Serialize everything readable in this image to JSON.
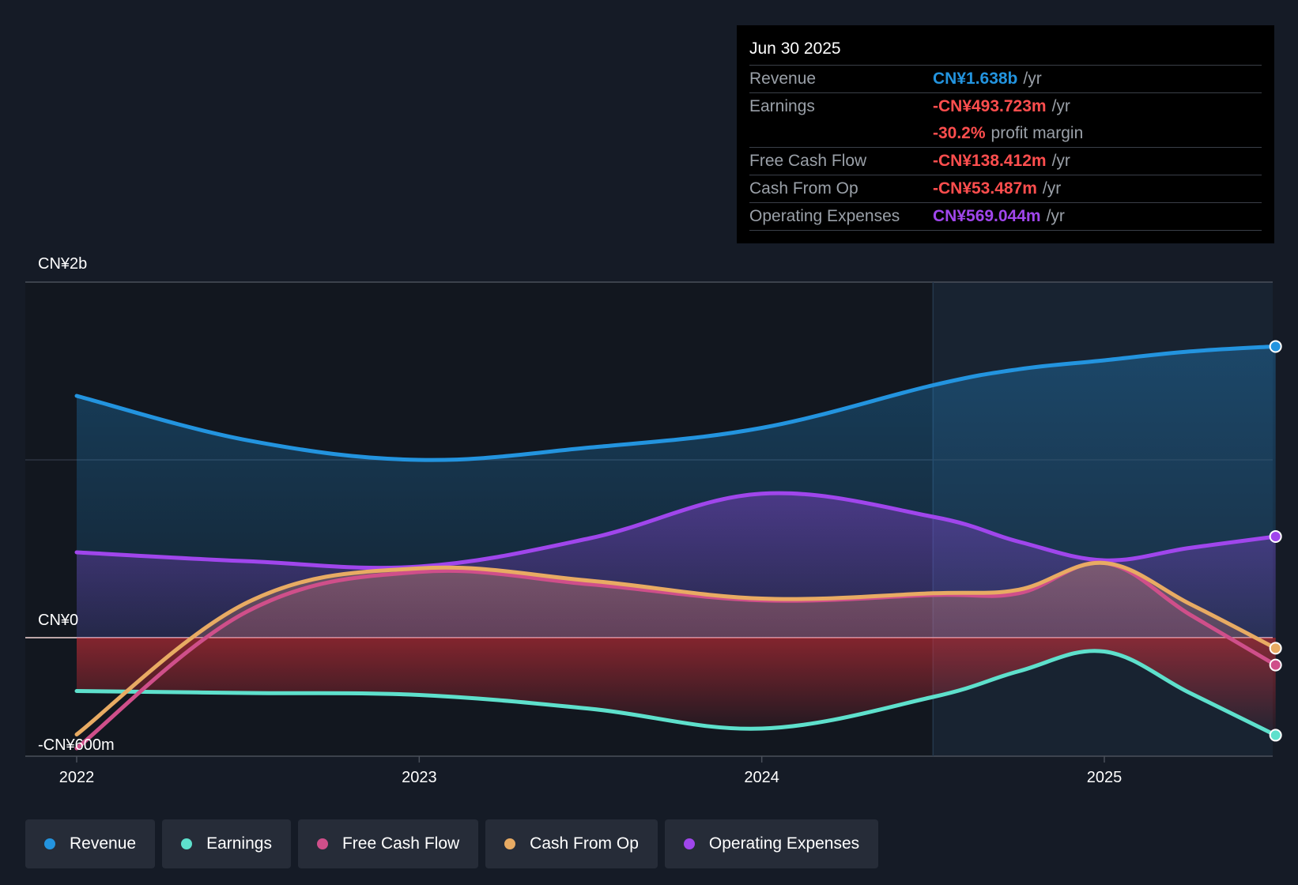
{
  "colors": {
    "background": "#151b26",
    "revenue": "#2394df",
    "earnings": "#5ee0cc",
    "free_cash_flow": "#cf4f8a",
    "cash_from_op": "#e8ab63",
    "operating_expenses": "#a046ec",
    "negative": "#ff4e4e",
    "muted": "#9aa0a8"
  },
  "tooltip": {
    "date": "Jun 30 2025",
    "rows": [
      {
        "name": "Revenue",
        "value": "CN¥1.638b",
        "unit": "/yr",
        "color": "#2394df"
      },
      {
        "name": "Earnings",
        "value": "-CN¥493.723m",
        "unit": "/yr",
        "color": "#ff4e4e"
      },
      {
        "name": "",
        "value": "-30.2%",
        "unit": "profit margin",
        "color": "#ff4e4e"
      },
      {
        "name": "Free Cash Flow",
        "value": "-CN¥138.412m",
        "unit": "/yr",
        "color": "#ff4e4e"
      },
      {
        "name": "Cash From Op",
        "value": "-CN¥53.487m",
        "unit": "/yr",
        "color": "#ff4e4e"
      },
      {
        "name": "Operating Expenses",
        "value": "CN¥569.044m",
        "unit": "/yr",
        "color": "#a046ec"
      }
    ]
  },
  "legend": [
    {
      "label": "Revenue",
      "color": "#2394df"
    },
    {
      "label": "Earnings",
      "color": "#5ee0cc"
    },
    {
      "label": "Free Cash Flow",
      "color": "#cf4f8a"
    },
    {
      "label": "Cash From Op",
      "color": "#e8ab63"
    },
    {
      "label": "Operating Expenses",
      "color": "#a046ec"
    }
  ],
  "chart_data": {
    "type": "area",
    "title": "",
    "xlabel": "",
    "ylabel": "",
    "x_ticks": [
      2022,
      2023,
      2024,
      2025
    ],
    "x_range": [
      2021.85,
      2025.5
    ],
    "ylim": [
      -600,
      2000
    ],
    "y_tick_labels": [
      {
        "value": 2000,
        "label": "CN¥2b"
      },
      {
        "value": 0,
        "label": "CN¥0"
      },
      {
        "value": -600,
        "label": "-CN¥600m"
      }
    ],
    "grid_values": [
      2000,
      1000
    ],
    "forecast_start": 2024.5,
    "series": [
      {
        "name": "Revenue",
        "key": "revenue",
        "points": [
          [
            2022.0,
            1360
          ],
          [
            2022.5,
            1110
          ],
          [
            2023.0,
            1000
          ],
          [
            2023.5,
            1070
          ],
          [
            2024.0,
            1180
          ],
          [
            2024.5,
            1420
          ],
          [
            2024.75,
            1510
          ],
          [
            2025.0,
            1560
          ],
          [
            2025.25,
            1610
          ],
          [
            2025.5,
            1638
          ]
        ]
      },
      {
        "name": "Earnings",
        "key": "earnings",
        "points": [
          [
            2022.0,
            -270
          ],
          [
            2022.5,
            -280
          ],
          [
            2023.0,
            -290
          ],
          [
            2023.5,
            -360
          ],
          [
            2024.0,
            -460
          ],
          [
            2024.5,
            -300
          ],
          [
            2024.75,
            -170
          ],
          [
            2025.0,
            -70
          ],
          [
            2025.25,
            -280
          ],
          [
            2025.5,
            -493.723
          ]
        ]
      },
      {
        "name": "Free Cash Flow",
        "key": "free_cash_flow",
        "points": [
          [
            2022.0,
            -560
          ],
          [
            2022.5,
            150
          ],
          [
            2023.0,
            370
          ],
          [
            2023.5,
            300
          ],
          [
            2024.0,
            210
          ],
          [
            2024.5,
            240
          ],
          [
            2024.75,
            250
          ],
          [
            2025.0,
            420
          ],
          [
            2025.25,
            130
          ],
          [
            2025.5,
            -138.412
          ]
        ]
      },
      {
        "name": "Cash From Op",
        "key": "cash_from_op",
        "points": [
          [
            2022.0,
            -490
          ],
          [
            2022.5,
            200
          ],
          [
            2023.0,
            390
          ],
          [
            2023.5,
            320
          ],
          [
            2024.0,
            220
          ],
          [
            2024.5,
            250
          ],
          [
            2024.75,
            270
          ],
          [
            2025.0,
            420
          ],
          [
            2025.25,
            190
          ],
          [
            2025.5,
            -53.487
          ]
        ]
      },
      {
        "name": "Operating Expenses",
        "key": "operating_expenses",
        "points": [
          [
            2022.0,
            480
          ],
          [
            2022.5,
            430
          ],
          [
            2023.0,
            400
          ],
          [
            2023.5,
            560
          ],
          [
            2024.0,
            810
          ],
          [
            2024.5,
            680
          ],
          [
            2024.75,
            540
          ],
          [
            2025.0,
            435
          ],
          [
            2025.25,
            505
          ],
          [
            2025.5,
            569.044
          ]
        ]
      }
    ]
  }
}
